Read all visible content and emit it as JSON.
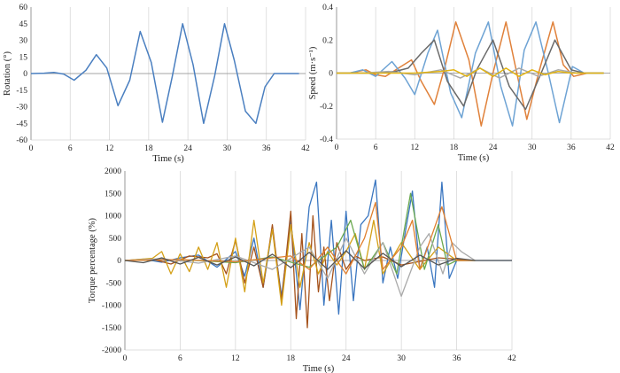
{
  "chart_data": [
    {
      "type": "line",
      "xlabel": "Time (s)",
      "ylabel": "Rotation (°)",
      "xlim": [
        0,
        42
      ],
      "ylim": [
        -60,
        60
      ],
      "xticks": [
        "0",
        "6",
        "12",
        "18",
        "24",
        "30",
        "36",
        "42"
      ],
      "yticks": [
        "60",
        "45",
        "30",
        "15",
        "0",
        "-15",
        "-30",
        "-45",
        "-60"
      ],
      "grid": "vertical",
      "series": [
        {
          "color": "#4a7fc0",
          "x": [
            0,
            2,
            3.5,
            5,
            6.6,
            8.4,
            10,
            11.6,
            13.3,
            15.1,
            16.7,
            18.4,
            20.1,
            21.6,
            23.2,
            24.8,
            26.4,
            28.1,
            29.6,
            31.1,
            32.8,
            34.4,
            35.8,
            37.2,
            38.5,
            41
          ],
          "y": [
            0,
            0.3,
            1,
            -0.5,
            -6,
            3,
            17,
            5,
            -29,
            -6,
            38,
            10,
            -44,
            -3,
            45,
            8,
            -45,
            -2,
            45,
            12,
            -34,
            -45,
            -12,
            0,
            0,
            0
          ]
        }
      ]
    },
    {
      "type": "line",
      "xlabel": "Time (s)",
      "ylabel": "Speed (m·s⁻¹)",
      "xlim": [
        0,
        42
      ],
      "ylim": [
        -0.4,
        0.4
      ],
      "xticks": [
        "0",
        "6",
        "12",
        "18",
        "24",
        "30",
        "36",
        "42"
      ],
      "yticks": [
        "0.4",
        "0.2",
        "0",
        "-0.2",
        "-0.4"
      ],
      "grid": "vertical",
      "series": [
        {
          "color": "#e0813a",
          "x": [
            0,
            2,
            4.5,
            6,
            7.5,
            9.5,
            11.5,
            13,
            15,
            16.7,
            18.3,
            20.3,
            22.2,
            24,
            26,
            27.5,
            29.2,
            31,
            33.2,
            34.8,
            36.4,
            38.5,
            41
          ],
          "y": [
            0,
            0,
            0.02,
            -0.01,
            -0.02,
            0.03,
            0.08,
            -0.05,
            -0.19,
            0.05,
            0.31,
            0.08,
            -0.32,
            0,
            0.31,
            0.03,
            -0.28,
            0,
            0.31,
            0.05,
            -0.02,
            0,
            0
          ]
        },
        {
          "color": "#6ea3d4",
          "x": [
            0,
            2,
            4,
            6,
            8.5,
            10.5,
            12,
            14,
            15.5,
            17.5,
            19.2,
            21.3,
            23.3,
            25.2,
            27,
            28.8,
            30.6,
            32.5,
            34.2,
            36.2,
            38,
            41
          ],
          "y": [
            0,
            0,
            0.02,
            -0.02,
            0.07,
            -0.03,
            -0.13,
            0.12,
            0.26,
            -0.12,
            -0.27,
            0.12,
            0.31,
            -0.08,
            -0.32,
            0.14,
            0.31,
            0,
            -0.3,
            0.04,
            0,
            0
          ]
        },
        {
          "color": "#6a6a6a",
          "x": [
            0,
            3,
            6,
            9,
            11,
            13,
            15,
            17,
            19.5,
            21.5,
            24,
            26.5,
            29,
            31.5,
            33.5,
            36,
            38,
            41
          ],
          "y": [
            0,
            0,
            0,
            0.01,
            0.03,
            0.12,
            0.2,
            -0.05,
            -0.2,
            0.02,
            0.2,
            -0.08,
            -0.22,
            0.01,
            0.2,
            0.02,
            0,
            0
          ]
        },
        {
          "color": "#a9a9a9",
          "x": [
            0,
            4,
            8,
            12,
            16,
            19,
            22,
            25,
            28,
            31,
            34,
            37,
            41
          ],
          "y": [
            0,
            0,
            0.01,
            -0.01,
            0.02,
            -0.03,
            0.03,
            -0.03,
            0.03,
            -0.02,
            0.02,
            0,
            0
          ]
        },
        {
          "color": "#e2b413",
          "x": [
            0,
            6,
            12,
            16,
            18,
            20,
            22,
            24,
            26,
            28,
            30,
            32,
            34,
            36,
            38,
            41
          ],
          "y": [
            0,
            0,
            0,
            0.01,
            0.02,
            -0.02,
            0.03,
            -0.02,
            0.03,
            -0.02,
            0.02,
            -0.01,
            0.01,
            0,
            0,
            0
          ]
        }
      ]
    },
    {
      "type": "line",
      "xlabel": "Time (s)",
      "ylabel": "Torque percentage (%)",
      "xlim": [
        0,
        42
      ],
      "ylim": [
        -2000,
        2000
      ],
      "xticks": [
        "0",
        "6",
        "12",
        "18",
        "24",
        "30",
        "36",
        "42"
      ],
      "yticks": [
        "2000",
        "1500",
        "1000",
        "500",
        "0",
        "-500",
        "-1000",
        "-1500",
        "-2000"
      ],
      "grid": "vertical",
      "series": [
        {
          "color": "#3a76c0",
          "x": [
            0,
            2,
            4,
            6,
            8,
            10,
            12,
            13,
            14,
            15,
            16,
            17,
            18,
            19,
            20,
            20.8,
            21.6,
            22.4,
            23.2,
            24,
            24.8,
            25.6,
            26.4,
            27.2,
            28,
            28.8,
            29.6,
            30.4,
            31.2,
            32,
            32.8,
            33.6,
            34.4,
            35.2,
            36,
            38,
            42
          ],
          "y": [
            0,
            30,
            -40,
            60,
            120,
            -150,
            200,
            -350,
            500,
            -600,
            700,
            -800,
            900,
            -1100,
            1200,
            1750,
            -1000,
            900,
            -1200,
            1100,
            -900,
            800,
            1000,
            1800,
            -500,
            300,
            -400,
            600,
            1550,
            -200,
            300,
            -600,
            1750,
            -400,
            0,
            0,
            0
          ]
        },
        {
          "color": "#a5521b",
          "x": [
            0,
            3,
            5,
            7,
            9,
            10,
            11,
            12,
            13,
            14,
            15,
            16,
            17,
            18,
            18.6,
            19.2,
            19.8,
            20.4,
            21,
            21.6,
            22.2,
            23,
            24,
            25,
            26,
            28,
            30,
            34,
            38
          ],
          "y": [
            0,
            30,
            -80,
            100,
            60,
            150,
            -300,
            450,
            -500,
            300,
            -600,
            800,
            -900,
            1100,
            -1300,
            600,
            -1500,
            1000,
            -700,
            300,
            -900,
            400,
            -200,
            100,
            0,
            80,
            -100,
            60,
            0
          ]
        },
        {
          "color": "#d4a017",
          "x": [
            0,
            3,
            4,
            5,
            6,
            7,
            8,
            9,
            10,
            11,
            12,
            13,
            14,
            15,
            16,
            17,
            18,
            19,
            20,
            21,
            22,
            23,
            24,
            25,
            26,
            27,
            28,
            30,
            32,
            34,
            36,
            38
          ],
          "y": [
            0,
            50,
            200,
            -300,
            150,
            -250,
            300,
            -200,
            400,
            -600,
            500,
            -700,
            900,
            -500,
            700,
            -1000,
            800,
            -600,
            400,
            -300,
            200,
            -100,
            200,
            600,
            -200,
            900,
            -300,
            400,
            -200,
            300,
            0,
            0
          ]
        },
        {
          "color": "#6aa84f",
          "x": [
            0,
            6,
            12,
            16,
            20,
            23,
            24.5,
            26,
            28,
            29.5,
            31,
            32.5,
            34,
            35,
            36,
            38
          ],
          "y": [
            0,
            20,
            -50,
            80,
            -150,
            300,
            900,
            -200,
            400,
            -300,
            1500,
            -200,
            800,
            -100,
            0,
            0
          ]
        },
        {
          "color": "#a9a9a9",
          "x": [
            0,
            4,
            8,
            12,
            16,
            20,
            22,
            24,
            26,
            28,
            30,
            32,
            33,
            34.5,
            35.5,
            36.5,
            38
          ],
          "y": [
            0,
            40,
            -60,
            100,
            -200,
            300,
            -400,
            500,
            -300,
            400,
            -800,
            300,
            600,
            -300,
            400,
            200,
            0
          ]
        },
        {
          "color": "#e07f2e",
          "x": [
            0,
            6,
            12,
            18,
            20,
            22,
            24,
            26,
            27.2,
            28,
            30,
            31.2,
            32,
            34.4,
            36,
            38
          ],
          "y": [
            0,
            20,
            -30,
            100,
            -200,
            300,
            -300,
            500,
            1300,
            -200,
            300,
            900,
            -200,
            1200,
            0,
            0
          ]
        },
        {
          "color": "#555555",
          "x": [
            0,
            2,
            4,
            6,
            8,
            10,
            12,
            14,
            16,
            18,
            20,
            22,
            24,
            26,
            28,
            30,
            32,
            34,
            36,
            38,
            42
          ],
          "y": [
            0,
            -50,
            60,
            -80,
            70,
            -100,
            80,
            -120,
            140,
            -160,
            180,
            -200,
            220,
            -180,
            160,
            -140,
            120,
            -100,
            50,
            0,
            0
          ]
        }
      ]
    }
  ]
}
